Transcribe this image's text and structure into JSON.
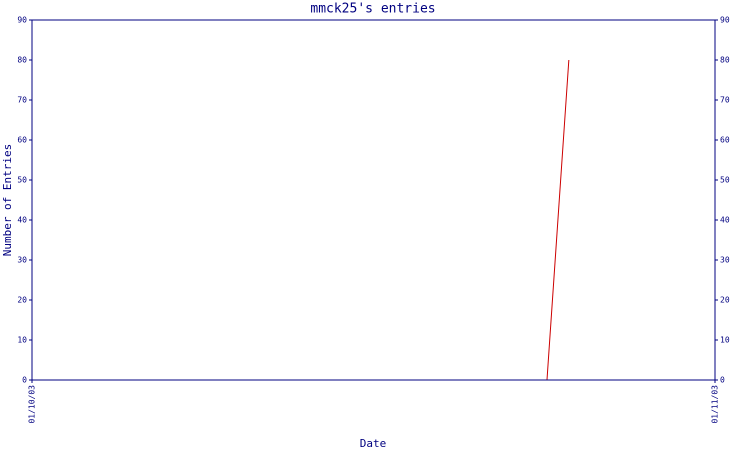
{
  "chart_data": {
    "type": "line",
    "title": "mmck25's entries",
    "xlabel": "Date",
    "ylabel": "Number of Entries",
    "x": [
      0,
      0.754,
      0.786
    ],
    "series": [
      {
        "color": "#cc0000",
        "values": [
          0,
          0,
          80
        ]
      }
    ],
    "xlim": [
      0,
      1
    ],
    "xticks": [
      {
        "value": 0,
        "label": "01/10/03"
      },
      {
        "value": 1,
        "label": "01/11/03"
      }
    ],
    "ylim": [
      0,
      90
    ],
    "yticks": [
      0,
      10,
      20,
      30,
      40,
      50,
      60,
      70,
      80,
      90
    ]
  }
}
